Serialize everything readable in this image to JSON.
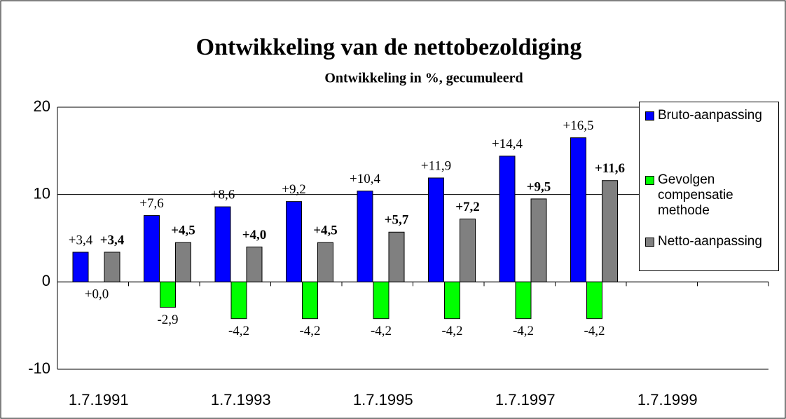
{
  "chart_data": {
    "type": "bar",
    "title": "Ontwikkeling van de nettobezoldiging",
    "subtitle": "Ontwikkeling in %, gecumuleerd",
    "categories": [
      "1.7.1991",
      null,
      "1.7.1993",
      null,
      "1.7.1995",
      null,
      "1.7.1997",
      null,
      "1.7.1999",
      null
    ],
    "series": [
      {
        "name": "Bruto-aanpassing",
        "color": "#0000ff",
        "values": [
          3.4,
          7.6,
          8.6,
          9.2,
          10.4,
          11.9,
          14.4,
          16.5,
          null,
          null
        ],
        "value_labels": [
          "+3,4",
          "+7,6",
          "+8,6",
          "+9,2",
          "+10,4",
          "+11,9",
          "+14,4",
          "+16,5",
          null,
          null
        ]
      },
      {
        "name": "Gevolgen compensatie methode",
        "color": "#00ff00",
        "values": [
          0.0,
          -2.9,
          -4.2,
          -4.2,
          -4.2,
          -4.2,
          -4.2,
          -4.2,
          null,
          null
        ],
        "value_labels": [
          "+0,0",
          "-2,9",
          "-4,2",
          "-4,2",
          "-4,2",
          "-4,2",
          "-4,2",
          "-4,2",
          null,
          null
        ]
      },
      {
        "name": "Netto-aanpassing",
        "color": "#808080",
        "values": [
          3.4,
          4.5,
          4.0,
          4.5,
          5.7,
          7.2,
          9.5,
          11.6,
          null,
          null
        ],
        "value_labels": [
          "+3,4",
          "+4,5",
          "+4,0",
          "+4,5",
          "+5,7",
          "+7,2",
          "+9,5",
          "+11,6",
          null,
          null
        ]
      }
    ],
    "ylim": [
      -10,
      20
    ],
    "yticks": [
      -10,
      0,
      10,
      20
    ],
    "grid": true,
    "legend": "right"
  }
}
